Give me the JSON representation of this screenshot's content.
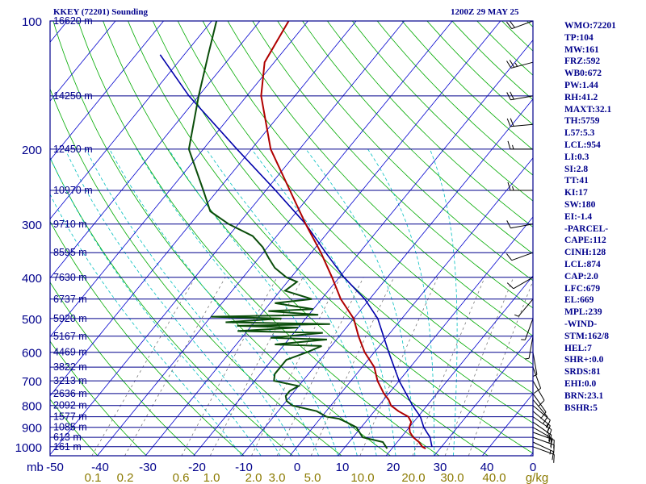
{
  "chart_data": {
    "type": "skew-t",
    "header_left": "KKEY (72201) Sounding",
    "header_right": "1200Z 29 MAY 25",
    "pressure_ticks": [
      "100",
      "200",
      "300",
      "400",
      "500",
      "600",
      "700",
      "800",
      "900",
      "1000"
    ],
    "pressure_values": [
      100,
      200,
      300,
      400,
      500,
      600,
      700,
      800,
      900,
      1000
    ],
    "pressure_axis_unit": "mb",
    "temperature_ticks": [
      "-50",
      "-40",
      "-30",
      "-20",
      "-10",
      "0",
      "10",
      "20",
      "30",
      "40",
      "0"
    ],
    "mixing_ratio_ticks": [
      "0.1",
      "0.2",
      "0.6",
      "1.0",
      "2.0",
      "3.0",
      "5.0",
      "10.0",
      "20.0",
      "30.0",
      "40.0",
      "g/kg"
    ],
    "height_labels": [
      {
        "p": 100,
        "label": "16620 m"
      },
      {
        "p": 150,
        "label": "14250 m"
      },
      {
        "p": 200,
        "label": "12450 m"
      },
      {
        "p": 250,
        "label": "10970 m"
      },
      {
        "p": 300,
        "label": "9710 m"
      },
      {
        "p": 350,
        "label": "8595 m"
      },
      {
        "p": 400,
        "label": "7630 m"
      },
      {
        "p": 450,
        "label": "6737 m"
      },
      {
        "p": 500,
        "label": "5920 m"
      },
      {
        "p": 550,
        "label": "5167 m"
      },
      {
        "p": 600,
        "label": "4469 m"
      },
      {
        "p": 650,
        "label": "3822 m"
      },
      {
        "p": 700,
        "label": "3213 m"
      },
      {
        "p": 750,
        "label": "2636 m"
      },
      {
        "p": 800,
        "label": "2092 m"
      },
      {
        "p": 850,
        "label": "1577 m"
      },
      {
        "p": 900,
        "label": "1085 m"
      },
      {
        "p": 950,
        "label": "613 m"
      },
      {
        "p": 1000,
        "label": "161 m"
      }
    ],
    "temperature_profile": [
      [
        1010,
        27
      ],
      [
        1000,
        26
      ],
      [
        975,
        24.5
      ],
      [
        950,
        22.5
      ],
      [
        925,
        21
      ],
      [
        900,
        20
      ],
      [
        875,
        19.5
      ],
      [
        850,
        18
      ],
      [
        825,
        15
      ],
      [
        800,
        12.5
      ],
      [
        775,
        11
      ],
      [
        750,
        9
      ],
      [
        700,
        5.5
      ],
      [
        650,
        2.5
      ],
      [
        600,
        -2
      ],
      [
        550,
        -6
      ],
      [
        500,
        -10
      ],
      [
        450,
        -16
      ],
      [
        400,
        -21.5
      ],
      [
        350,
        -28
      ],
      [
        300,
        -36
      ],
      [
        250,
        -45
      ],
      [
        200,
        -56
      ],
      [
        150,
        -67
      ],
      [
        125,
        -72
      ],
      [
        100,
        -74
      ]
    ],
    "dewpoint_profile": [
      [
        1010,
        19
      ],
      [
        975,
        17
      ],
      [
        950,
        12
      ],
      [
        925,
        10.5
      ],
      [
        900,
        9
      ],
      [
        875,
        6
      ],
      [
        860,
        4
      ],
      [
        850,
        1
      ],
      [
        825,
        -2
      ],
      [
        800,
        -8
      ],
      [
        780,
        -10
      ],
      [
        760,
        -11
      ],
      [
        740,
        -11
      ],
      [
        720,
        -10
      ],
      [
        700,
        -16
      ],
      [
        675,
        -17
      ],
      [
        650,
        -17
      ],
      [
        625,
        -17
      ],
      [
        600,
        -14
      ],
      [
        580,
        -12
      ],
      [
        575,
        -22
      ],
      [
        560,
        -12
      ],
      [
        555,
        -24
      ],
      [
        540,
        -14
      ],
      [
        535,
        -32
      ],
      [
        525,
        -20
      ],
      [
        520,
        -33
      ],
      [
        515,
        -14
      ],
      [
        510,
        -36
      ],
      [
        500,
        -25
      ],
      [
        495,
        -40
      ],
      [
        490,
        -18
      ],
      [
        480,
        -29
      ],
      [
        475,
        -20
      ],
      [
        460,
        -29
      ],
      [
        450,
        -22
      ],
      [
        430,
        -29
      ],
      [
        410,
        -28
      ],
      [
        400,
        -31
      ],
      [
        380,
        -35
      ],
      [
        360,
        -38
      ],
      [
        340,
        -41
      ],
      [
        320,
        -45
      ],
      [
        300,
        -52
      ],
      [
        280,
        -58
      ],
      [
        250,
        -63
      ],
      [
        200,
        -73
      ],
      [
        150,
        -80
      ],
      [
        120,
        -85
      ],
      [
        100,
        -89
      ]
    ],
    "parcel_profile": [
      [
        1000,
        28
      ],
      [
        950,
        26
      ],
      [
        925,
        24.5
      ],
      [
        900,
        23
      ],
      [
        850,
        20.5
      ],
      [
        800,
        17
      ],
      [
        700,
        10
      ],
      [
        600,
        3
      ],
      [
        500,
        -5
      ],
      [
        450,
        -11
      ],
      [
        400,
        -19
      ],
      [
        350,
        -27
      ],
      [
        300,
        -36
      ],
      [
        250,
        -48
      ],
      [
        200,
        -63
      ],
      [
        150,
        -82
      ],
      [
        120,
        -95
      ]
    ],
    "wind_barbs": [
      {
        "p": 1000,
        "dir": 110,
        "spd": 10
      },
      {
        "p": 975,
        "dir": 115,
        "spd": 15
      },
      {
        "p": 950,
        "dir": 110,
        "spd": 15
      },
      {
        "p": 925,
        "dir": 110,
        "spd": 15
      },
      {
        "p": 900,
        "dir": 120,
        "spd": 15
      },
      {
        "p": 875,
        "dir": 125,
        "spd": 15
      },
      {
        "p": 850,
        "dir": 125,
        "spd": 15
      },
      {
        "p": 825,
        "dir": 130,
        "spd": 15
      },
      {
        "p": 800,
        "dir": 130,
        "spd": 10
      },
      {
        "p": 775,
        "dir": 140,
        "spd": 10
      },
      {
        "p": 750,
        "dir": 145,
        "spd": 10
      },
      {
        "p": 700,
        "dir": 150,
        "spd": 10
      },
      {
        "p": 650,
        "dir": 160,
        "spd": 10
      },
      {
        "p": 600,
        "dir": 170,
        "spd": 5
      },
      {
        "p": 550,
        "dir": 190,
        "spd": 5
      },
      {
        "p": 500,
        "dir": 200,
        "spd": 5
      },
      {
        "p": 450,
        "dir": 220,
        "spd": 5
      },
      {
        "p": 400,
        "dir": 240,
        "spd": 10
      },
      {
        "p": 350,
        "dir": 250,
        "spd": 10
      },
      {
        "p": 300,
        "dir": 260,
        "spd": 10
      },
      {
        "p": 250,
        "dir": 270,
        "spd": 15
      },
      {
        "p": 200,
        "dir": 270,
        "spd": 15
      },
      {
        "p": 175,
        "dir": 265,
        "spd": 20
      },
      {
        "p": 150,
        "dir": 260,
        "spd": 20
      },
      {
        "p": 125,
        "dir": 255,
        "spd": 25
      },
      {
        "p": 100,
        "dir": 250,
        "spd": 20
      }
    ]
  },
  "stats": [
    "WMO:72201",
    "TP:104",
    "MW:161",
    "FRZ:592",
    "WB0:672",
    "PW:1.44",
    "RH:41.2",
    "MAXT:32.1",
    "TH:5759",
    "L57:5.3",
    "LCL:954",
    "LI:0.3",
    "SI:2.8",
    "TT:41",
    "KI:17",
    "SW:180",
    "EI:-1.4",
    "-PARCEL-",
    "CAPE:112",
    "CINH:128",
    "LCL:874",
    "CAP:2.0",
    "LFC:679",
    "EL:669",
    "MPL:239",
    "-WIND-",
    "STM:162/8",
    "HEL:7",
    "SHR+:0.0",
    "SRDS:81",
    "EHI:0.0",
    "BRN:23.1",
    "BSHR:5"
  ],
  "colors": {
    "isobar": "#00008b",
    "isotherm": "#0000cd",
    "dry_adiabat": "#00aa00",
    "moist_adiabat": "#00bfbf",
    "mixing_ratio": "#666666",
    "temperature": "#b00000",
    "dewpoint": "#0a4d0a",
    "parcel": "#0000aa",
    "mixing_label": "#8b7a00",
    "barb": "#000000"
  }
}
